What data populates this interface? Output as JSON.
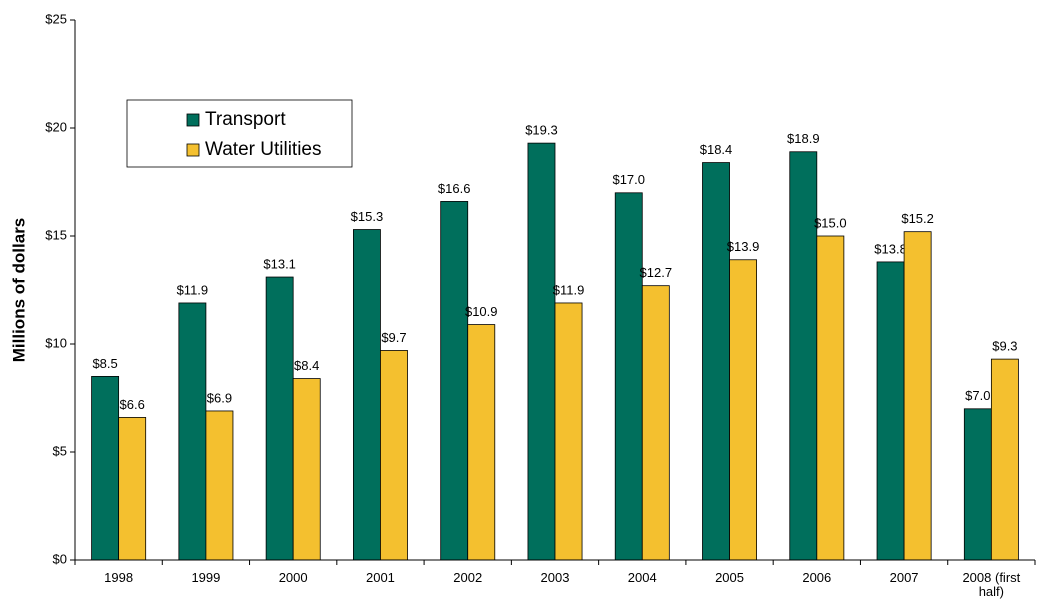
{
  "chart_data": {
    "type": "bar",
    "y_label": "Millions of dollars",
    "categories": [
      "1998",
      "1999",
      "2000",
      "2001",
      "2002",
      "2003",
      "2004",
      "2005",
      "2006",
      "2007",
      "2008 (first half)"
    ],
    "series": [
      {
        "name": "Transport",
        "color": "#006f5c",
        "values": [
          8.5,
          11.9,
          13.1,
          15.3,
          16.6,
          19.3,
          17.0,
          18.4,
          18.9,
          13.8,
          7.0
        ],
        "value_labels": [
          "$8.5",
          "$11.9",
          "$13.1",
          "$15.3",
          "$16.6",
          "$19.3",
          "$17.0",
          "$18.4",
          "$18.9",
          "$13.8",
          "$7.0"
        ]
      },
      {
        "name": "Water Utilities",
        "color": "#f4c02f",
        "values": [
          6.6,
          6.9,
          8.4,
          9.7,
          10.9,
          11.9,
          12.7,
          13.9,
          15.0,
          15.2,
          9.3
        ],
        "value_labels": [
          "$6.6",
          "$6.9",
          "$8.4",
          "$9.7",
          "$10.9",
          "$11.9",
          "$12.7",
          "$13.9",
          "$15.0",
          "$15.2",
          "$9.3"
        ]
      }
    ],
    "ylim": [
      0,
      25
    ],
    "yticks": [
      {
        "value": 0,
        "label": "$0"
      },
      {
        "value": 5,
        "label": "$5"
      },
      {
        "value": 10,
        "label": "$10"
      },
      {
        "value": 15,
        "label": "$15"
      },
      {
        "value": 20,
        "label": "$20"
      },
      {
        "value": 25,
        "label": "$25"
      }
    ],
    "grid": false,
    "legend": "upper left"
  }
}
